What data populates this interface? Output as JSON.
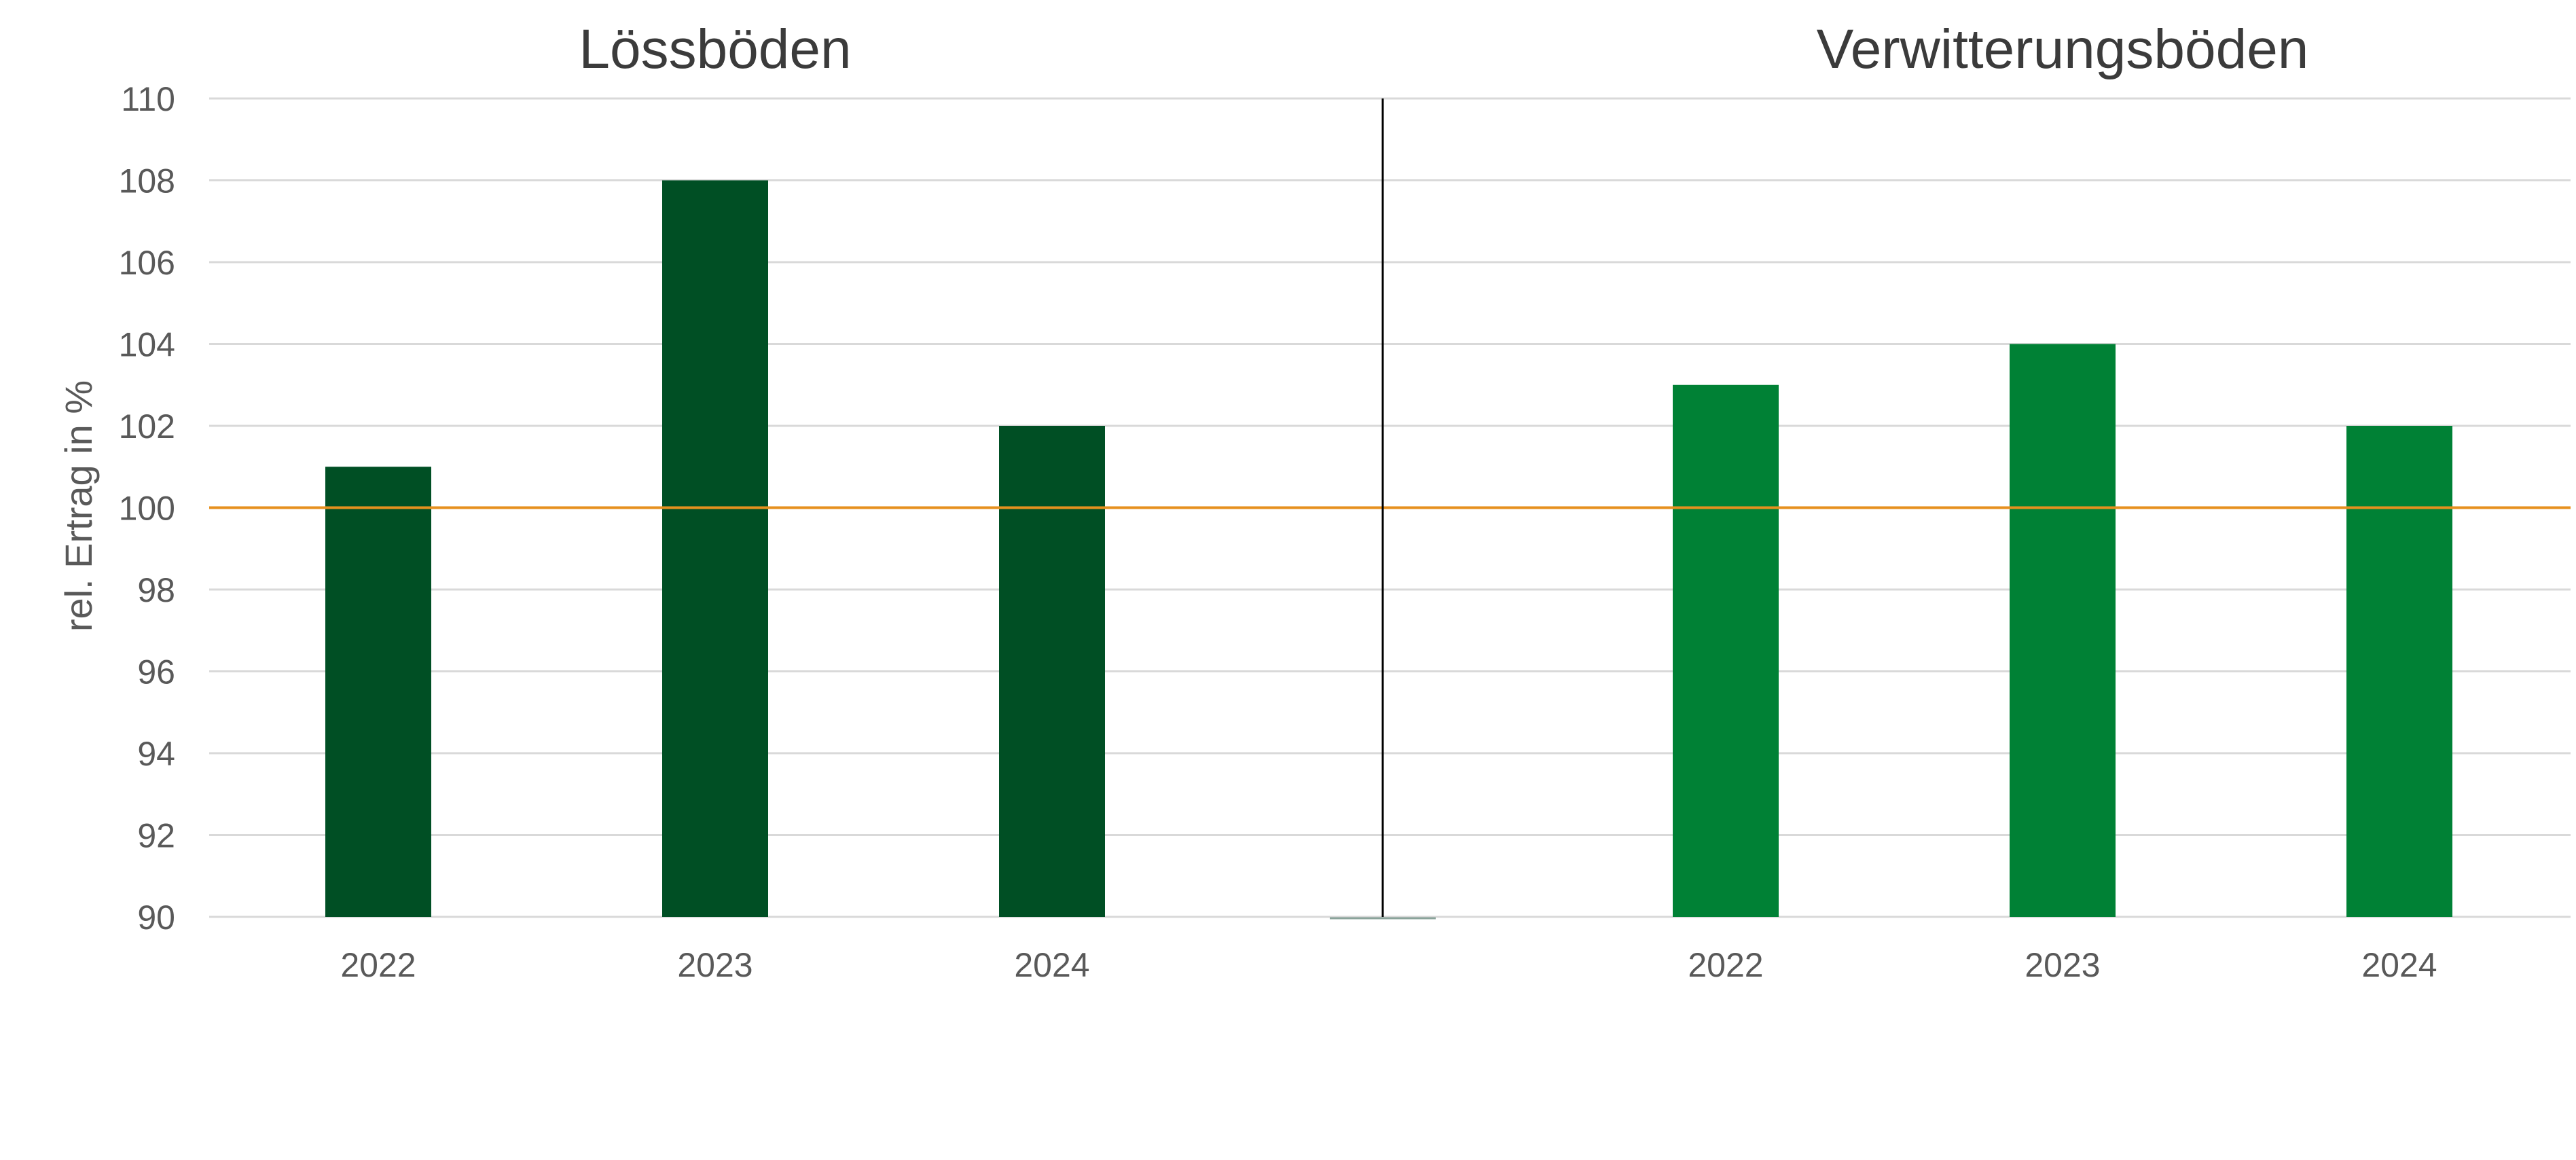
{
  "chart_data": {
    "type": "bar",
    "ylabel": "rel. Ertrag in %",
    "ylim": [
      90,
      110
    ],
    "yticks": [
      90,
      92,
      94,
      96,
      98,
      100,
      102,
      104,
      106,
      108,
      110
    ],
    "reference_line": 100,
    "grid": true,
    "legend": "none",
    "groups": [
      {
        "title": "Lössböden",
        "categories": [
          "2022",
          "2023",
          "2024"
        ],
        "values": [
          101,
          108,
          102
        ],
        "color": "#004f24"
      },
      {
        "title": "Verwitterungsböden",
        "categories": [
          "2022",
          "2023",
          "2024"
        ],
        "values": [
          103,
          104,
          102
        ],
        "color": "#008135"
      }
    ],
    "colors": {
      "grid": "#d9d9d9",
      "reference_line": "#e6901e",
      "divider": "#000000",
      "tick_text": "#595959",
      "title_text": "#3b3b3b"
    }
  }
}
